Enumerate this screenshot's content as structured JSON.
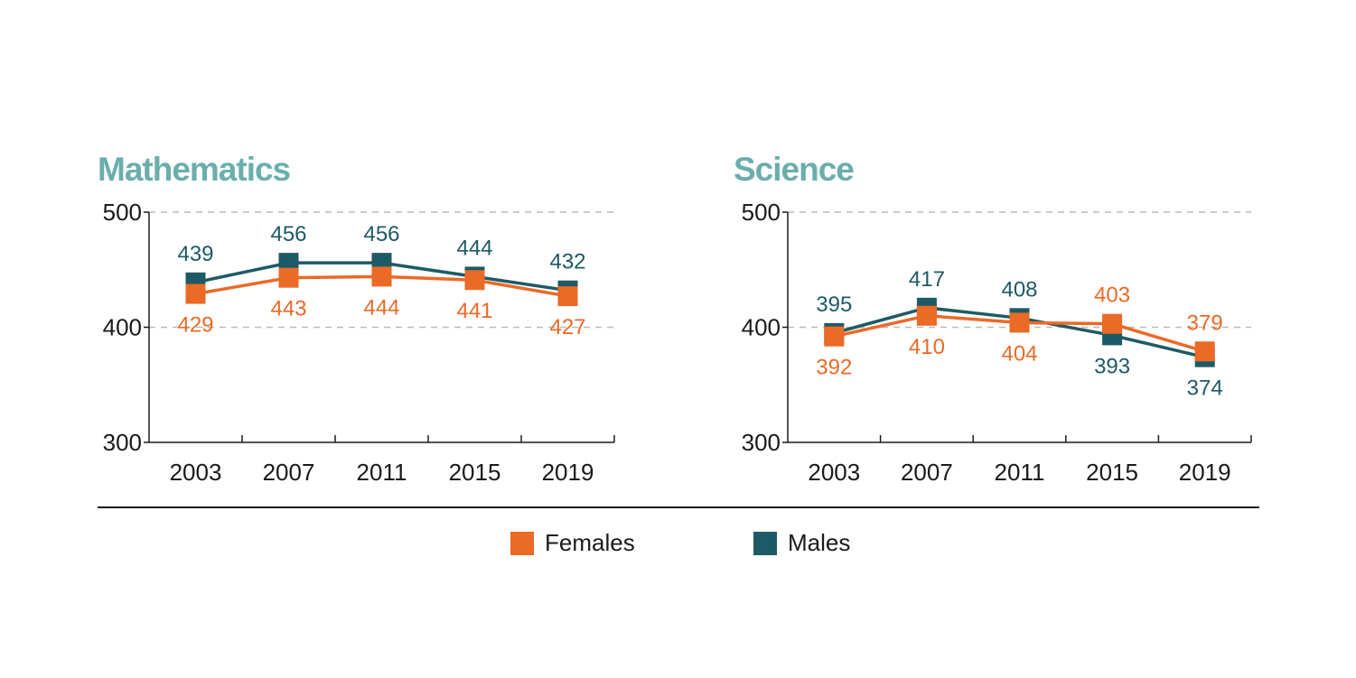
{
  "colors": {
    "females": "#ea6a26",
    "males": "#1e5a66",
    "title": "#6aaeac",
    "axis": "#1a1a1a",
    "grid": "#bbbbbb"
  },
  "legend": {
    "females": "Females",
    "males": "Males"
  },
  "chart_data": [
    {
      "type": "line",
      "title": "Mathematics",
      "xlabel": "",
      "ylabel": "",
      "categories": [
        "2003",
        "2007",
        "2011",
        "2015",
        "2019"
      ],
      "ylim": [
        300,
        500
      ],
      "yticks": [
        "300",
        "400",
        "500"
      ],
      "series": [
        {
          "name": "Females",
          "values": [
            429,
            443,
            444,
            441,
            427
          ]
        },
        {
          "name": "Males",
          "values": [
            439,
            456,
            456,
            444,
            432
          ]
        }
      ]
    },
    {
      "type": "line",
      "title": "Science",
      "xlabel": "",
      "ylabel": "",
      "categories": [
        "2003",
        "2007",
        "2011",
        "2015",
        "2019"
      ],
      "ylim": [
        300,
        500
      ],
      "yticks": [
        "300",
        "400",
        "500"
      ],
      "series": [
        {
          "name": "Females",
          "values": [
            392,
            410,
            404,
            403,
            379
          ]
        },
        {
          "name": "Males",
          "values": [
            395,
            417,
            408,
            393,
            374
          ]
        }
      ]
    }
  ]
}
